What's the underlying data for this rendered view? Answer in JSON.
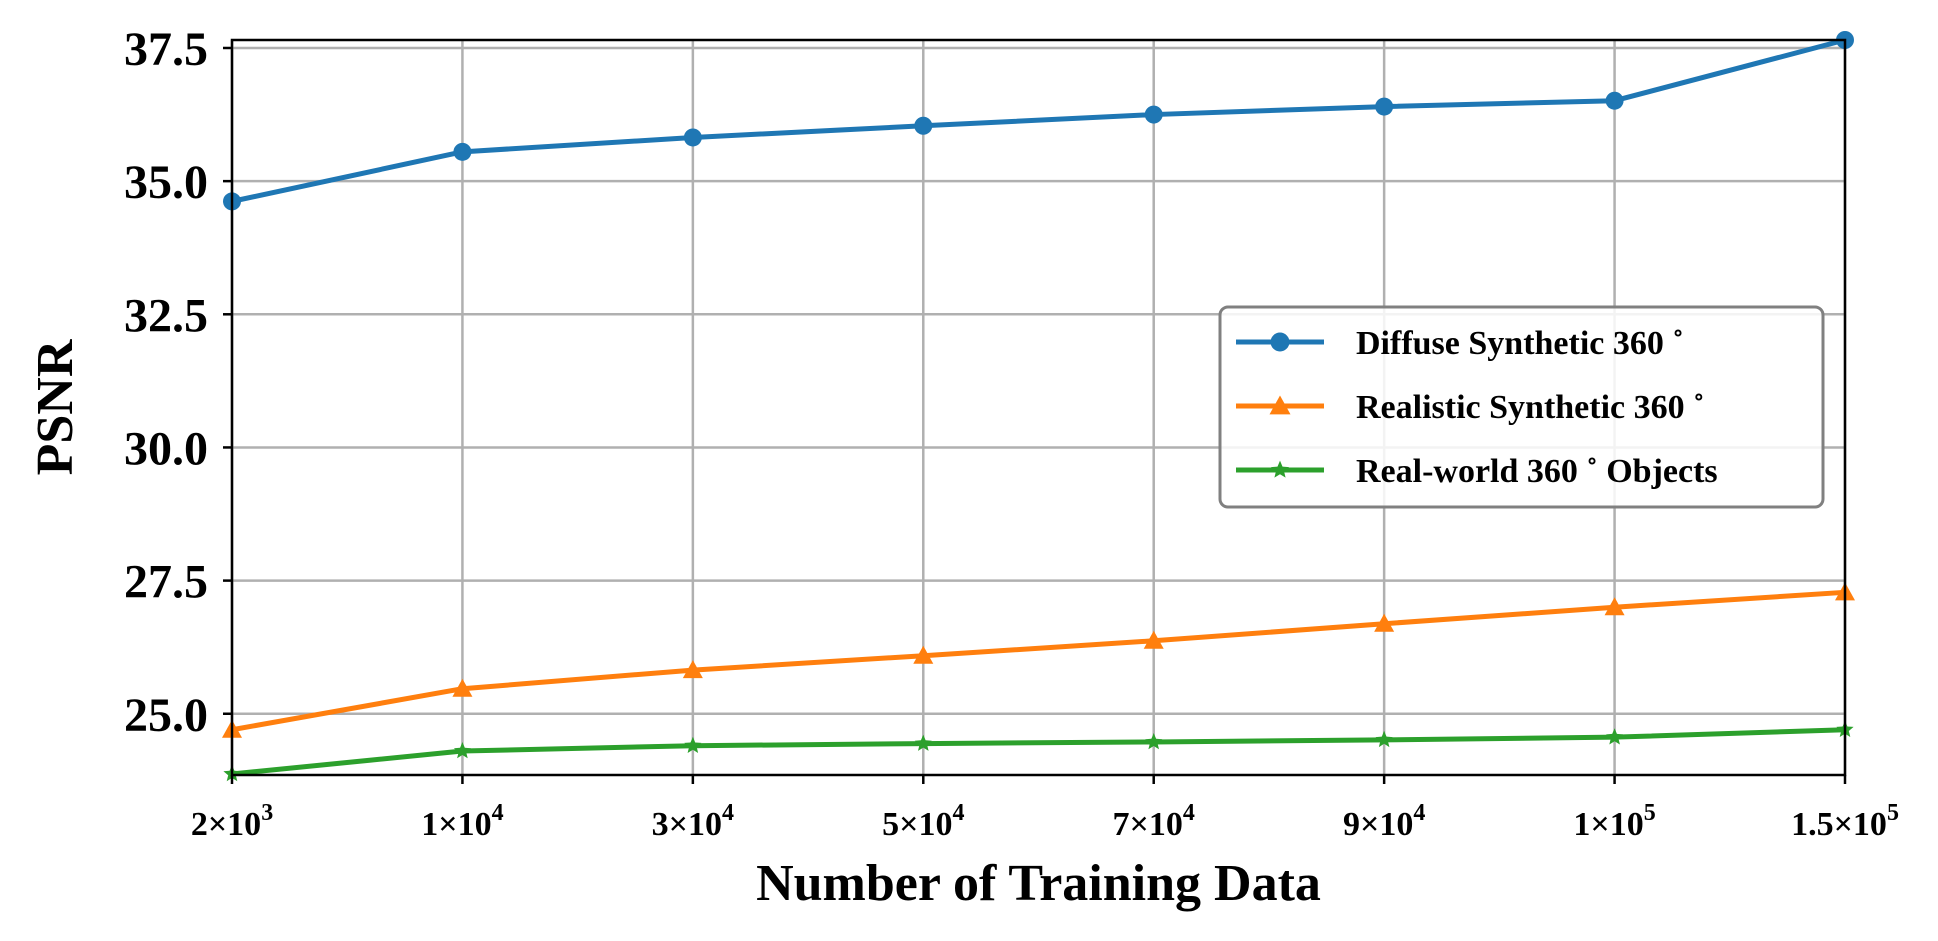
{
  "chart_data": {
    "type": "line",
    "title": "",
    "xlabel": "Number of Training Data",
    "ylabel": "PSNR",
    "categories": [
      {
        "base": "2×10",
        "exp": "3"
      },
      {
        "base": "1×10",
        "exp": "4"
      },
      {
        "base": "3×10",
        "exp": "4"
      },
      {
        "base": "5×10",
        "exp": "4"
      },
      {
        "base": "7×10",
        "exp": "4"
      },
      {
        "base": "9×10",
        "exp": "4"
      },
      {
        "base": "1×10",
        "exp": "5"
      },
      {
        "base": "1.5×10",
        "exp": "5"
      }
    ],
    "yticks": [
      "25.0",
      "27.5",
      "30.0",
      "32.5",
      "35.0",
      "37.5"
    ],
    "ytick_values": [
      25.0,
      27.5,
      30.0,
      32.5,
      35.0,
      37.5
    ],
    "ylim": [
      23.85,
      37.65
    ],
    "grid": true,
    "legend_position": "center-right",
    "series": [
      {
        "name": "Diffuse Synthetic 360 ˚",
        "color": "#1f77b4",
        "marker": "circle",
        "values": [
          34.62,
          35.55,
          35.82,
          36.04,
          36.25,
          36.4,
          36.51,
          37.65
        ]
      },
      {
        "name": "Realistic Synthetic 360 ˚",
        "color": "#ff7f0e",
        "marker": "triangle",
        "values": [
          24.7,
          25.47,
          25.82,
          26.09,
          26.37,
          26.69,
          27.0,
          27.28
        ]
      },
      {
        "name": "Real-world 360 ˚  Objects",
        "color": "#2ca02c",
        "marker": "star",
        "values": [
          23.87,
          24.3,
          24.4,
          24.44,
          24.47,
          24.51,
          24.56,
          24.7
        ]
      }
    ]
  }
}
